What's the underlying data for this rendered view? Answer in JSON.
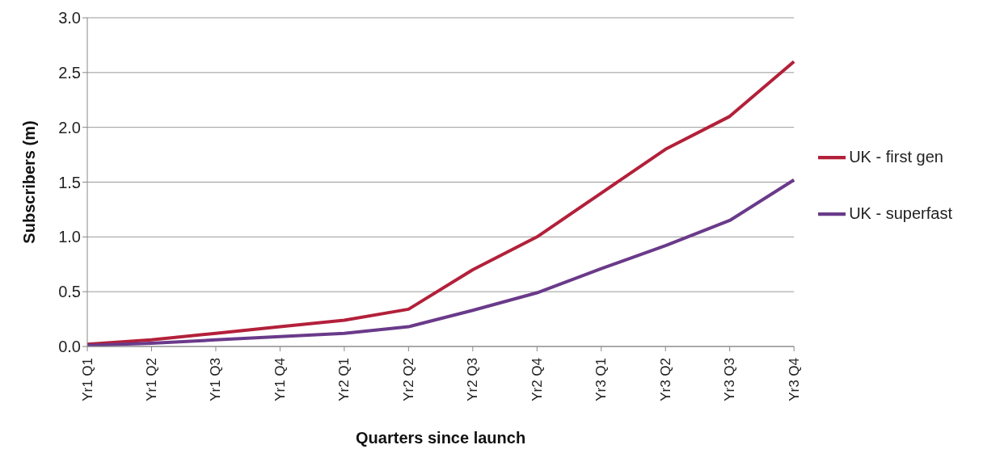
{
  "chart_data": {
    "type": "line",
    "xlabel": "Quarters since launch",
    "ylabel": "Subscribers (m)",
    "categories": [
      "Yr1 Q1",
      "Yr1 Q2",
      "Yr1 Q3",
      "Yr1 Q4",
      "Yr2 Q1",
      "Yr2 Q2",
      "Yr2 Q3",
      "Yr2 Q4",
      "Yr3 Q1",
      "Yr3 Q2",
      "Yr3 Q3",
      "Yr3 Q4"
    ],
    "series": [
      {
        "name": "UK - first gen",
        "color": "#b3203a",
        "values": [
          0.02,
          0.06,
          0.12,
          0.18,
          0.24,
          0.34,
          0.7,
          1.0,
          1.4,
          1.8,
          2.1,
          2.6
        ]
      },
      {
        "name": "UK - superfast",
        "color": "#6a3a8a",
        "values": [
          0.01,
          0.03,
          0.06,
          0.09,
          0.12,
          0.18,
          0.33,
          0.49,
          0.71,
          0.92,
          1.15,
          1.52
        ]
      }
    ],
    "ylim": [
      0,
      3
    ],
    "yticks": [
      {
        "value": 0,
        "label": "0.0"
      },
      {
        "value": 0.5,
        "label": "0.5"
      },
      {
        "value": 1,
        "label": "1.0"
      },
      {
        "value": 1.5,
        "label": "1.5"
      },
      {
        "value": 2,
        "label": "2.0"
      },
      {
        "value": 2.5,
        "label": "2.5"
      },
      {
        "value": 3,
        "label": "3.0"
      }
    ],
    "grid": "y",
    "legend": "right",
    "marker": "none",
    "line_style": "solid"
  }
}
